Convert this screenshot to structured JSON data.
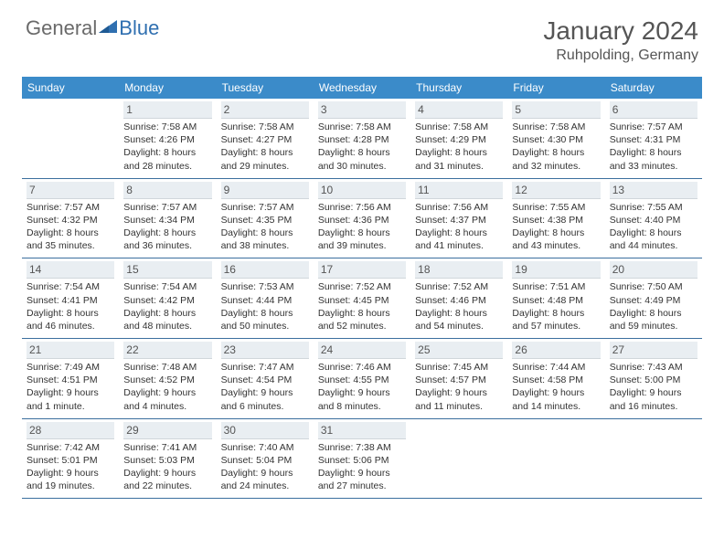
{
  "logo": {
    "text1": "General",
    "text2": "Blue"
  },
  "title": "January 2024",
  "location": "Ruhpolding, Germany",
  "colors": {
    "header_bg": "#3b8bc9",
    "header_text": "#ffffff",
    "daynum_bg": "#e9eef2",
    "rule": "#3b6f9e",
    "logo_gray": "#6a6a6a",
    "logo_blue": "#2f6fb0"
  },
  "day_names": [
    "Sunday",
    "Monday",
    "Tuesday",
    "Wednesday",
    "Thursday",
    "Friday",
    "Saturday"
  ],
  "weeks": [
    [
      {
        "day": "",
        "sunrise": "",
        "sunset": "",
        "daylight": ""
      },
      {
        "day": "1",
        "sunrise": "Sunrise: 7:58 AM",
        "sunset": "Sunset: 4:26 PM",
        "daylight": "Daylight: 8 hours and 28 minutes."
      },
      {
        "day": "2",
        "sunrise": "Sunrise: 7:58 AM",
        "sunset": "Sunset: 4:27 PM",
        "daylight": "Daylight: 8 hours and 29 minutes."
      },
      {
        "day": "3",
        "sunrise": "Sunrise: 7:58 AM",
        "sunset": "Sunset: 4:28 PM",
        "daylight": "Daylight: 8 hours and 30 minutes."
      },
      {
        "day": "4",
        "sunrise": "Sunrise: 7:58 AM",
        "sunset": "Sunset: 4:29 PM",
        "daylight": "Daylight: 8 hours and 31 minutes."
      },
      {
        "day": "5",
        "sunrise": "Sunrise: 7:58 AM",
        "sunset": "Sunset: 4:30 PM",
        "daylight": "Daylight: 8 hours and 32 minutes."
      },
      {
        "day": "6",
        "sunrise": "Sunrise: 7:57 AM",
        "sunset": "Sunset: 4:31 PM",
        "daylight": "Daylight: 8 hours and 33 minutes."
      }
    ],
    [
      {
        "day": "7",
        "sunrise": "Sunrise: 7:57 AM",
        "sunset": "Sunset: 4:32 PM",
        "daylight": "Daylight: 8 hours and 35 minutes."
      },
      {
        "day": "8",
        "sunrise": "Sunrise: 7:57 AM",
        "sunset": "Sunset: 4:34 PM",
        "daylight": "Daylight: 8 hours and 36 minutes."
      },
      {
        "day": "9",
        "sunrise": "Sunrise: 7:57 AM",
        "sunset": "Sunset: 4:35 PM",
        "daylight": "Daylight: 8 hours and 38 minutes."
      },
      {
        "day": "10",
        "sunrise": "Sunrise: 7:56 AM",
        "sunset": "Sunset: 4:36 PM",
        "daylight": "Daylight: 8 hours and 39 minutes."
      },
      {
        "day": "11",
        "sunrise": "Sunrise: 7:56 AM",
        "sunset": "Sunset: 4:37 PM",
        "daylight": "Daylight: 8 hours and 41 minutes."
      },
      {
        "day": "12",
        "sunrise": "Sunrise: 7:55 AM",
        "sunset": "Sunset: 4:38 PM",
        "daylight": "Daylight: 8 hours and 43 minutes."
      },
      {
        "day": "13",
        "sunrise": "Sunrise: 7:55 AM",
        "sunset": "Sunset: 4:40 PM",
        "daylight": "Daylight: 8 hours and 44 minutes."
      }
    ],
    [
      {
        "day": "14",
        "sunrise": "Sunrise: 7:54 AM",
        "sunset": "Sunset: 4:41 PM",
        "daylight": "Daylight: 8 hours and 46 minutes."
      },
      {
        "day": "15",
        "sunrise": "Sunrise: 7:54 AM",
        "sunset": "Sunset: 4:42 PM",
        "daylight": "Daylight: 8 hours and 48 minutes."
      },
      {
        "day": "16",
        "sunrise": "Sunrise: 7:53 AM",
        "sunset": "Sunset: 4:44 PM",
        "daylight": "Daylight: 8 hours and 50 minutes."
      },
      {
        "day": "17",
        "sunrise": "Sunrise: 7:52 AM",
        "sunset": "Sunset: 4:45 PM",
        "daylight": "Daylight: 8 hours and 52 minutes."
      },
      {
        "day": "18",
        "sunrise": "Sunrise: 7:52 AM",
        "sunset": "Sunset: 4:46 PM",
        "daylight": "Daylight: 8 hours and 54 minutes."
      },
      {
        "day": "19",
        "sunrise": "Sunrise: 7:51 AM",
        "sunset": "Sunset: 4:48 PM",
        "daylight": "Daylight: 8 hours and 57 minutes."
      },
      {
        "day": "20",
        "sunrise": "Sunrise: 7:50 AM",
        "sunset": "Sunset: 4:49 PM",
        "daylight": "Daylight: 8 hours and 59 minutes."
      }
    ],
    [
      {
        "day": "21",
        "sunrise": "Sunrise: 7:49 AM",
        "sunset": "Sunset: 4:51 PM",
        "daylight": "Daylight: 9 hours and 1 minute."
      },
      {
        "day": "22",
        "sunrise": "Sunrise: 7:48 AM",
        "sunset": "Sunset: 4:52 PM",
        "daylight": "Daylight: 9 hours and 4 minutes."
      },
      {
        "day": "23",
        "sunrise": "Sunrise: 7:47 AM",
        "sunset": "Sunset: 4:54 PM",
        "daylight": "Daylight: 9 hours and 6 minutes."
      },
      {
        "day": "24",
        "sunrise": "Sunrise: 7:46 AM",
        "sunset": "Sunset: 4:55 PM",
        "daylight": "Daylight: 9 hours and 8 minutes."
      },
      {
        "day": "25",
        "sunrise": "Sunrise: 7:45 AM",
        "sunset": "Sunset: 4:57 PM",
        "daylight": "Daylight: 9 hours and 11 minutes."
      },
      {
        "day": "26",
        "sunrise": "Sunrise: 7:44 AM",
        "sunset": "Sunset: 4:58 PM",
        "daylight": "Daylight: 9 hours and 14 minutes."
      },
      {
        "day": "27",
        "sunrise": "Sunrise: 7:43 AM",
        "sunset": "Sunset: 5:00 PM",
        "daylight": "Daylight: 9 hours and 16 minutes."
      }
    ],
    [
      {
        "day": "28",
        "sunrise": "Sunrise: 7:42 AM",
        "sunset": "Sunset: 5:01 PM",
        "daylight": "Daylight: 9 hours and 19 minutes."
      },
      {
        "day": "29",
        "sunrise": "Sunrise: 7:41 AM",
        "sunset": "Sunset: 5:03 PM",
        "daylight": "Daylight: 9 hours and 22 minutes."
      },
      {
        "day": "30",
        "sunrise": "Sunrise: 7:40 AM",
        "sunset": "Sunset: 5:04 PM",
        "daylight": "Daylight: 9 hours and 24 minutes."
      },
      {
        "day": "31",
        "sunrise": "Sunrise: 7:38 AM",
        "sunset": "Sunset: 5:06 PM",
        "daylight": "Daylight: 9 hours and 27 minutes."
      },
      {
        "day": "",
        "sunrise": "",
        "sunset": "",
        "daylight": ""
      },
      {
        "day": "",
        "sunrise": "",
        "sunset": "",
        "daylight": ""
      },
      {
        "day": "",
        "sunrise": "",
        "sunset": "",
        "daylight": ""
      }
    ]
  ]
}
